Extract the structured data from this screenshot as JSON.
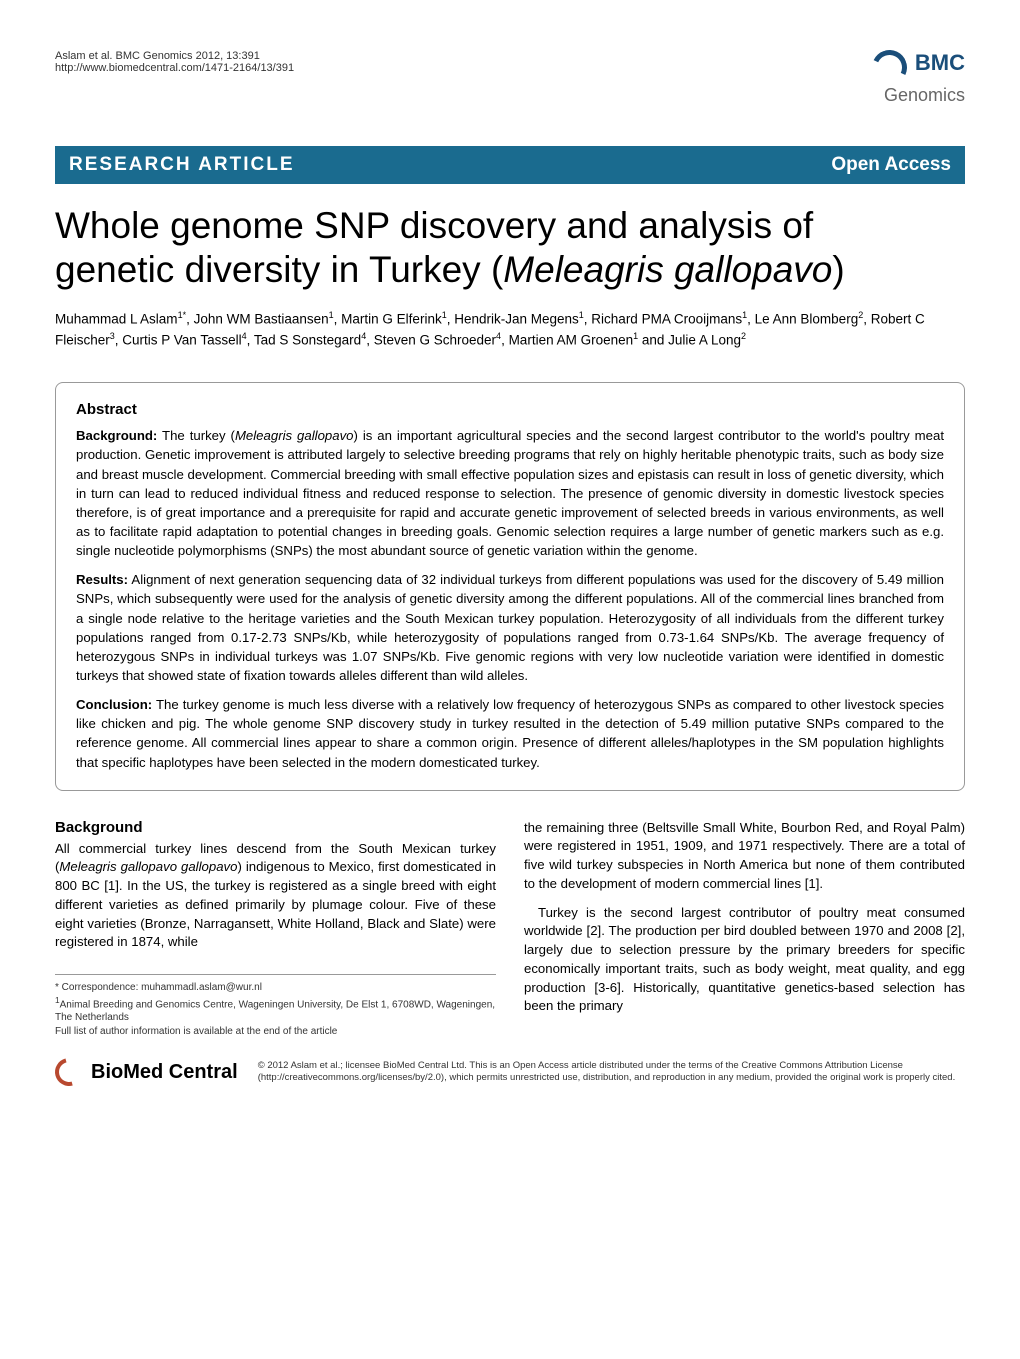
{
  "header": {
    "citation_line1": "Aslam et al. BMC Genomics 2012, 13:391",
    "citation_line2": "http://www.biomedcentral.com/1471-2164/13/391",
    "logo_top": "BMC",
    "logo_bottom": "Genomics",
    "logo_color": "#1a4e7a"
  },
  "banner": {
    "left": "RESEARCH ARTICLE",
    "right": "Open Access",
    "bg_color": "#1a6b8f"
  },
  "title": {
    "line1": "Whole genome SNP discovery and analysis of",
    "line2_pre": "genetic diversity in Turkey (",
    "line2_italic": "Meleagris gallopavo",
    "line2_post": ")"
  },
  "authors": "Muhammad L Aslam<sup>1*</sup>, John WM Bastiaansen<sup>1</sup>, Martin G Elferink<sup>1</sup>, Hendrik-Jan Megens<sup>1</sup>, Richard PMA Crooijmans<sup>1</sup>, Le Ann Blomberg<sup>2</sup>, Robert C Fleischer<sup>3</sup>, Curtis P Van Tassell<sup>4</sup>, Tad S Sonstegard<sup>4</sup>, Steven G Schroeder<sup>4</sup>, Martien AM Groenen<sup>1</sup> and Julie A Long<sup>2</sup>",
  "abstract": {
    "heading": "Abstract",
    "background_label": "Background:",
    "background_text": " The turkey (<span class=\"italic\">Meleagris gallopavo</span>) is an important agricultural species and the second largest contributor to the world's poultry meat production. Genetic improvement is attributed largely to selective breeding programs that rely on highly heritable phenotypic traits, such as body size and breast muscle development. Commercial breeding with small effective population sizes and epistasis can result in loss of genetic diversity, which in turn can lead to reduced individual fitness and reduced response to selection. The presence of genomic diversity in domestic livestock species therefore, is of great importance and a prerequisite for rapid and accurate genetic improvement of selected breeds in various environments, as well as to facilitate rapid adaptation to potential changes in breeding goals. Genomic selection requires a large number of genetic markers such as e.g. single nucleotide polymorphisms (SNPs) the most abundant source of genetic variation within the genome.",
    "results_label": "Results:",
    "results_text": " Alignment of next generation sequencing data of 32 individual turkeys from different populations was used for the discovery of 5.49 million SNPs, which subsequently were used for the analysis of genetic diversity among the different populations. All of the commercial lines branched from a single node relative to the heritage varieties and the South Mexican turkey population. Heterozygosity of all individuals from the different turkey populations ranged from 0.17-2.73 SNPs/Kb, while heterozygosity of populations ranged from 0.73-1.64 SNPs/Kb. The average frequency of heterozygous SNPs in individual turkeys was 1.07 SNPs/Kb. Five genomic regions with very low nucleotide variation were identified in domestic turkeys that showed state of fixation towards alleles different than wild alleles.",
    "conclusion_label": "Conclusion:",
    "conclusion_text": " The turkey genome is much less diverse with a relatively low frequency of heterozygous SNPs as compared to other livestock species like chicken and pig. The whole genome SNP discovery study in turkey resulted in the detection of 5.49 million putative SNPs compared to the reference genome. All commercial lines appear to share a common origin. Presence of different alleles/haplotypes in the SM population highlights that specific haplotypes have been selected in the modern domesticated turkey."
  },
  "body": {
    "background_heading": "Background",
    "col1_p1": "All commercial turkey lines descend from the South Mexican turkey (<span class=\"italic\">Meleagris gallopavo gallopavo</span>) indigenous to Mexico, first domesticated in 800 BC [1]. In the US, the turkey is registered as a single breed with eight different varieties as defined primarily by plumage colour. Five of these eight varieties (Bronze, Narragansett, White Holland, Black and Slate) were registered in 1874, while",
    "col2_p1": "the remaining three (Beltsville Small White, Bourbon Red, and Royal Palm) were registered in 1951, 1909, and 1971 respectively. There are a total of five wild turkey subspecies in North America but none of them contributed to the development of modern commercial lines [1].",
    "col2_p2": "Turkey is the second largest contributor of poultry meat consumed worldwide [2]. The production per bird doubled between 1970 and 2008 [2], largely due to selection pressure by the primary breeders for specific economically important traits, such as body weight, meat quality, and egg production [3-6]. Historically, quantitative genetics-based selection has been the primary"
  },
  "footnotes": {
    "correspondence": "* Correspondence: muhammadl.aslam@wur.nl",
    "affiliation": "<sup>1</sup>Animal Breeding and Genomics Centre, Wageningen University, De Elst 1, 6708WD, Wageningen, The Netherlands",
    "full_list": "Full list of author information is available at the end of the article"
  },
  "footer": {
    "logo_text": "BioMed Central",
    "copyright": "© 2012 Aslam et al.; licensee BioMed Central Ltd. This is an Open Access article distributed under the terms of the Creative Commons Attribution License (http://creativecommons.org/licenses/by/2.0), which permits unrestricted use, distribution, and reproduction in any medium, provided the original work is properly cited."
  }
}
